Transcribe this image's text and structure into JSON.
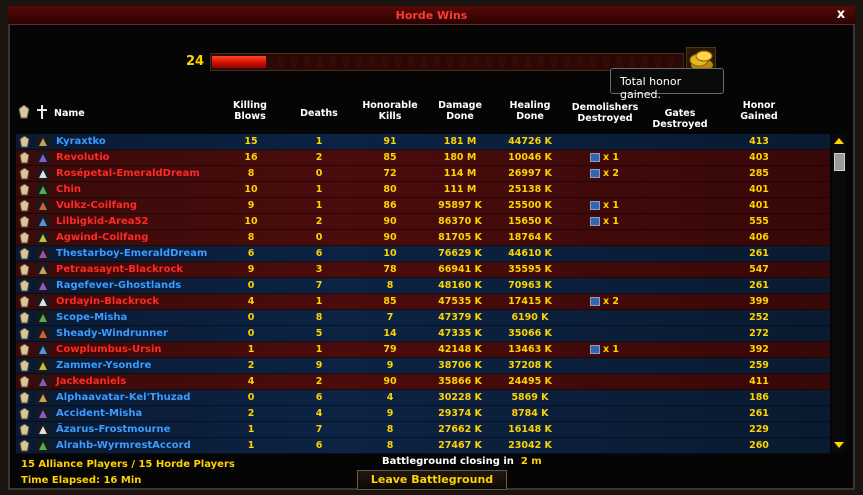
{
  "window": {
    "title": "Horde Wins",
    "close_label": "x"
  },
  "honor": {
    "count": "24",
    "progress": 0.115,
    "tooltip": "Total honor gained."
  },
  "columns": {
    "name": "Name",
    "killing_blows": [
      "Killing",
      "Blows"
    ],
    "deaths": "Deaths",
    "honorable_kills": [
      "Honorable",
      "Kills"
    ],
    "damage_done": [
      "Damage",
      "Done"
    ],
    "healing_done": [
      "Healing",
      "Done"
    ],
    "demolishers_destroyed": [
      "Demolishers",
      "Destroyed"
    ],
    "gates_destroyed": "Gates Destroyed",
    "honor_gained": [
      "Honor",
      "Gained"
    ]
  },
  "players": [
    {
      "name": "Kyraxtko",
      "faction": "alliance",
      "kb": "15",
      "deaths": "1",
      "hk": "91",
      "dmg": "181 M",
      "heal": "44726 K",
      "demo": "",
      "honor": "413"
    },
    {
      "name": "Revolutio",
      "faction": "horde",
      "kb": "16",
      "deaths": "2",
      "hk": "85",
      "dmg": "180 M",
      "heal": "10046 K",
      "demo": "x 1",
      "honor": "403"
    },
    {
      "name": "Rosépetal-EmeraldDream",
      "faction": "horde",
      "kb": "8",
      "deaths": "0",
      "hk": "72",
      "dmg": "114 M",
      "heal": "26997 K",
      "demo": "x 2",
      "honor": "285"
    },
    {
      "name": "Chin",
      "faction": "horde",
      "kb": "10",
      "deaths": "1",
      "hk": "80",
      "dmg": "111 M",
      "heal": "25138 K",
      "demo": "",
      "honor": "401"
    },
    {
      "name": "Vulkz-Coilfang",
      "faction": "horde",
      "kb": "9",
      "deaths": "1",
      "hk": "86",
      "dmg": "95897 K",
      "heal": "25500 K",
      "demo": "x 1",
      "honor": "401"
    },
    {
      "name": "Lilbigkid-Area52",
      "faction": "horde",
      "kb": "10",
      "deaths": "2",
      "hk": "90",
      "dmg": "86370 K",
      "heal": "15650 K",
      "demo": "x 1",
      "honor": "555"
    },
    {
      "name": "Agwind-Coilfang",
      "faction": "horde",
      "kb": "8",
      "deaths": "0",
      "hk": "90",
      "dmg": "81705 K",
      "heal": "18764 K",
      "demo": "",
      "honor": "406"
    },
    {
      "name": "Thestarboy-EmeraldDream",
      "faction": "alliance",
      "kb": "6",
      "deaths": "6",
      "hk": "10",
      "dmg": "76629 K",
      "heal": "44610 K",
      "demo": "",
      "honor": "261"
    },
    {
      "name": "Petraasaynt-Blackrock",
      "faction": "horde",
      "kb": "9",
      "deaths": "3",
      "hk": "78",
      "dmg": "66941 K",
      "heal": "35595 K",
      "demo": "",
      "honor": "547"
    },
    {
      "name": "Ragefever-Ghostlands",
      "faction": "alliance",
      "kb": "0",
      "deaths": "7",
      "hk": "8",
      "dmg": "48160 K",
      "heal": "70963 K",
      "demo": "",
      "honor": "261"
    },
    {
      "name": "Ordayin-Blackrock",
      "faction": "horde",
      "kb": "4",
      "deaths": "1",
      "hk": "85",
      "dmg": "47535 K",
      "heal": "17415 K",
      "demo": "x 2",
      "honor": "399"
    },
    {
      "name": "Scope-Misha",
      "faction": "alliance",
      "kb": "0",
      "deaths": "8",
      "hk": "7",
      "dmg": "47379 K",
      "heal": "6190 K",
      "demo": "",
      "honor": "252"
    },
    {
      "name": "Sheady-Windrunner",
      "faction": "alliance",
      "kb": "0",
      "deaths": "5",
      "hk": "14",
      "dmg": "47335 K",
      "heal": "35066 K",
      "demo": "",
      "honor": "272"
    },
    {
      "name": "Cowplumbus-Ursin",
      "faction": "horde",
      "kb": "1",
      "deaths": "1",
      "hk": "79",
      "dmg": "42148 K",
      "heal": "13463 K",
      "demo": "x 1",
      "honor": "392"
    },
    {
      "name": "Zammer-Ysondre",
      "faction": "alliance",
      "kb": "2",
      "deaths": "9",
      "hk": "9",
      "dmg": "38706 K",
      "heal": "37208 K",
      "demo": "",
      "honor": "259"
    },
    {
      "name": "Jackedaniels",
      "faction": "horde",
      "kb": "4",
      "deaths": "2",
      "hk": "90",
      "dmg": "35866 K",
      "heal": "24495 K",
      "demo": "",
      "honor": "411"
    },
    {
      "name": "Alphaavatar-Kel'Thuzad",
      "faction": "alliance",
      "kb": "0",
      "deaths": "6",
      "hk": "4",
      "dmg": "30228 K",
      "heal": "5869 K",
      "demo": "",
      "honor": "186"
    },
    {
      "name": "Accident-Misha",
      "faction": "alliance",
      "kb": "2",
      "deaths": "4",
      "hk": "9",
      "dmg": "29374 K",
      "heal": "8784 K",
      "demo": "",
      "honor": "261"
    },
    {
      "name": "Äzarus-Frostmourne",
      "faction": "alliance",
      "kb": "1",
      "deaths": "7",
      "hk": "8",
      "dmg": "27662 K",
      "heal": "16148 K",
      "demo": "",
      "honor": "229"
    },
    {
      "name": "Alrahb-WyrmrestAccord",
      "faction": "alliance",
      "kb": "1",
      "deaths": "6",
      "hk": "8",
      "dmg": "27467 K",
      "heal": "23042 K",
      "demo": "",
      "honor": "260"
    }
  ],
  "footer": {
    "players_summary": "15 Alliance Players / 15 Horde Players",
    "time_elapsed": "Time Elapsed: 16 Min",
    "closing_label": "Battleground closing in",
    "closing_value": "2 m",
    "leave_button": "Leave Battleground"
  },
  "colors": {
    "horde_name": "#ff2a22",
    "alliance_name": "#3c9cff",
    "value": "#ffd200",
    "title": "#ff3b2f"
  },
  "icons": {
    "rank": "pvp-rank-icon",
    "class": "class-icon",
    "demolisher": "demolisher-flag-icon",
    "honor": "honor-coin-icon"
  }
}
